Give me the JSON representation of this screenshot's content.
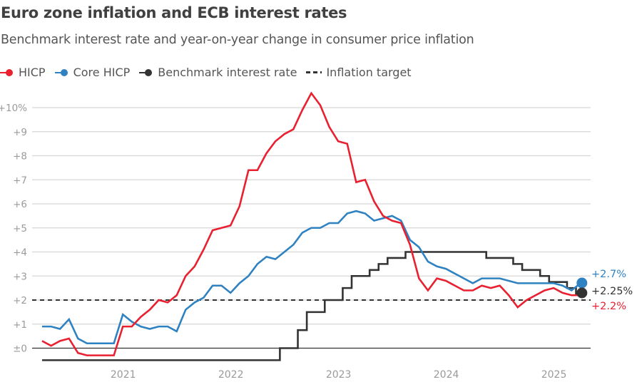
{
  "title": "Euro zone inflation and ECB interest rates",
  "subtitle": "Benchmark interest rate and year-on-year change in consumer price inflation",
  "legend": [
    {
      "label": "HICP",
      "color": "#e8202f",
      "style": "line-dot"
    },
    {
      "label": "Core HICP",
      "color": "#2f82c1",
      "style": "line-dot"
    },
    {
      "label": "Benchmark interest rate",
      "color": "#333333",
      "style": "line-dot"
    },
    {
      "label": "Inflation target",
      "color": "#333333",
      "style": "dashed"
    }
  ],
  "chart_data": {
    "type": "line",
    "title": "Euro zone inflation and ECB interest rates",
    "subtitle": "Benchmark interest rate and year-on-year change in consumer price inflation",
    "xlabel": "",
    "ylabel": "",
    "x_start": "2020-04",
    "x_end": "2025-04",
    "x_frequency": "monthly",
    "x_ticks": [
      "2021",
      "2022",
      "2023",
      "2024",
      "2025"
    ],
    "ylim": [
      -0.5,
      10.7
    ],
    "y_ticks": [
      {
        "value": 0,
        "label": "±0"
      },
      {
        "value": 1,
        "label": "+1"
      },
      {
        "value": 2,
        "label": "+2"
      },
      {
        "value": 3,
        "label": "+3"
      },
      {
        "value": 4,
        "label": "+4"
      },
      {
        "value": 5,
        "label": "+5"
      },
      {
        "value": 6,
        "label": "+6"
      },
      {
        "value": 7,
        "label": "+7"
      },
      {
        "value": 8,
        "label": "+8"
      },
      {
        "value": 9,
        "label": "+9"
      },
      {
        "value": 10,
        "label": "+10%"
      }
    ],
    "grid": true,
    "inflation_target": 2.0,
    "series": [
      {
        "name": "HICP",
        "color": "#e8202f",
        "kind": "line",
        "end_label": "+2.2%",
        "values": [
          0.3,
          0.1,
          0.3,
          0.4,
          -0.2,
          -0.3,
          -0.3,
          -0.3,
          -0.3,
          0.9,
          0.9,
          1.3,
          1.6,
          2.0,
          1.9,
          2.2,
          3.0,
          3.4,
          4.1,
          4.9,
          5.0,
          5.1,
          5.9,
          7.4,
          7.4,
          8.1,
          8.6,
          8.9,
          9.1,
          9.9,
          10.6,
          10.1,
          9.2,
          8.6,
          8.5,
          6.9,
          7.0,
          6.1,
          5.5,
          5.3,
          5.2,
          4.3,
          2.9,
          2.4,
          2.9,
          2.8,
          2.6,
          2.4,
          2.4,
          2.6,
          2.5,
          2.6,
          2.2,
          1.7,
          2.0,
          2.2,
          2.4,
          2.5,
          2.3,
          2.2,
          2.2
        ]
      },
      {
        "name": "Core HICP",
        "color": "#2f82c1",
        "kind": "line",
        "end_label": "+2.7%",
        "values": [
          0.9,
          0.9,
          0.8,
          1.2,
          0.4,
          0.2,
          0.2,
          0.2,
          0.2,
          1.4,
          1.1,
          0.9,
          0.8,
          0.9,
          0.9,
          0.7,
          1.6,
          1.9,
          2.1,
          2.6,
          2.6,
          2.3,
          2.7,
          3.0,
          3.5,
          3.8,
          3.7,
          4.0,
          4.3,
          4.8,
          5.0,
          5.0,
          5.2,
          5.2,
          5.6,
          5.7,
          5.6,
          5.3,
          5.4,
          5.5,
          5.3,
          4.5,
          4.2,
          3.6,
          3.4,
          3.3,
          3.1,
          2.9,
          2.7,
          2.9,
          2.9,
          2.9,
          2.8,
          2.7,
          2.7,
          2.7,
          2.7,
          2.7,
          2.6,
          2.4,
          2.7
        ]
      },
      {
        "name": "Benchmark interest rate",
        "color": "#333333",
        "kind": "step",
        "end_label": "+2.25%",
        "values": [
          -0.5,
          -0.5,
          -0.5,
          -0.5,
          -0.5,
          -0.5,
          -0.5,
          -0.5,
          -0.5,
          -0.5,
          -0.5,
          -0.5,
          -0.5,
          -0.5,
          -0.5,
          -0.5,
          -0.5,
          -0.5,
          -0.5,
          -0.5,
          -0.5,
          -0.5,
          -0.5,
          -0.5,
          -0.5,
          -0.5,
          -0.5,
          0.0,
          0.0,
          0.75,
          1.5,
          1.5,
          2.0,
          2.0,
          2.5,
          3.0,
          3.0,
          3.25,
          3.5,
          3.75,
          3.75,
          4.0,
          4.0,
          4.0,
          4.0,
          4.0,
          4.0,
          4.0,
          4.0,
          4.0,
          3.75,
          3.75,
          3.75,
          3.5,
          3.25,
          3.25,
          3.0,
          2.75,
          2.75,
          2.5,
          2.25
        ]
      }
    ]
  }
}
